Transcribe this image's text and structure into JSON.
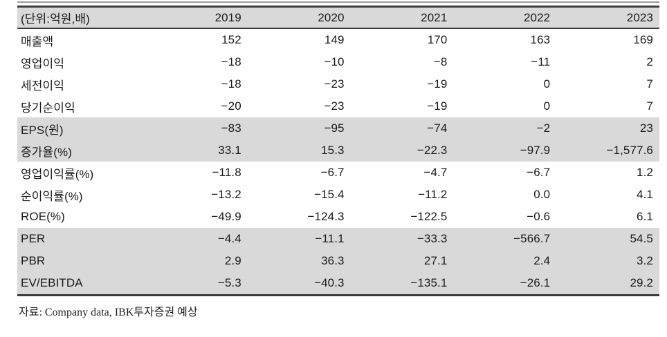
{
  "table": {
    "unit_label": "(단위:억원,배)",
    "year_columns": [
      "2019",
      "2020",
      "2021",
      "2022",
      "2023"
    ],
    "rows": [
      {
        "label": "매출액",
        "values": [
          "152",
          "149",
          "170",
          "163",
          "169"
        ],
        "highlight": false
      },
      {
        "label": "영업이익",
        "values": [
          "−18",
          "−10",
          "−8",
          "−11",
          "2"
        ],
        "highlight": false
      },
      {
        "label": "세전이익",
        "values": [
          "−18",
          "−23",
          "−19",
          "0",
          "7"
        ],
        "highlight": false
      },
      {
        "label": "당기순이익",
        "values": [
          "−20",
          "−23",
          "−19",
          "0",
          "7"
        ],
        "highlight": false
      },
      {
        "label": "EPS(원)",
        "values": [
          "−83",
          "−95",
          "−74",
          "−2",
          "23"
        ],
        "highlight": true
      },
      {
        "label": "증가율(%)",
        "values": [
          "33.1",
          "15.3",
          "−22.3",
          "−97.9",
          "−1,577.6"
        ],
        "highlight": true
      },
      {
        "label": "영업이익률(%)",
        "values": [
          "−11.8",
          "−6.7",
          "−4.7",
          "−6.7",
          "1.2"
        ],
        "highlight": false
      },
      {
        "label": "순이익률(%)",
        "values": [
          "−13.2",
          "−15.4",
          "−11.2",
          "0.0",
          "4.1"
        ],
        "highlight": false
      },
      {
        "label": "ROE(%)",
        "values": [
          "−49.9",
          "−124.3",
          "−122.5",
          "−0.6",
          "6.1"
        ],
        "highlight": false
      },
      {
        "label": "PER",
        "values": [
          "−4.4",
          "−11.1",
          "−33.3",
          "−566.7",
          "54.5"
        ],
        "highlight": true
      },
      {
        "label": "PBR",
        "values": [
          "2.9",
          "36.3",
          "27.1",
          "2.4",
          "3.2"
        ],
        "highlight": true
      },
      {
        "label": "EV/EBITDA",
        "values": [
          "−5.3",
          "−40.3",
          "−135.1",
          "−26.1",
          "29.2"
        ],
        "highlight": true
      }
    ]
  },
  "footer": {
    "source_note": "자료: Company data, IBK투자증권 예상"
  },
  "colors": {
    "highlight_band": "#d9d9d9",
    "border_dark": "#3c3c3c",
    "top_rule": "#9a9a9a",
    "text": "#1a1a1a"
  }
}
